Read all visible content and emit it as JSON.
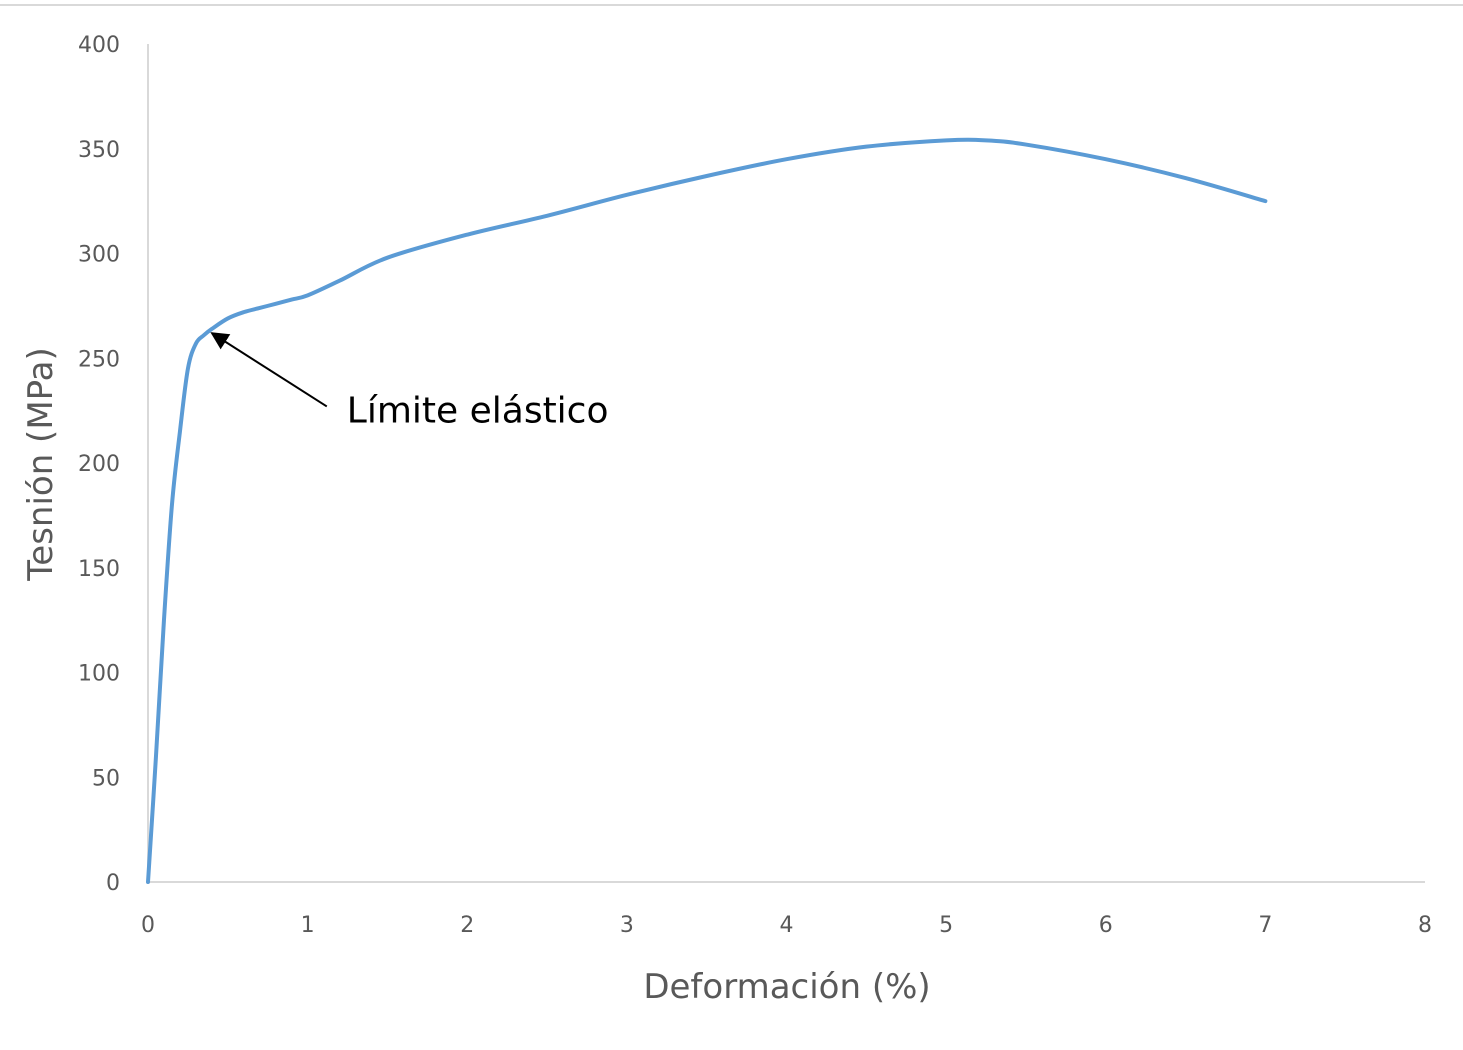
{
  "chart_data": {
    "type": "line",
    "xlabel": "Deformación (%)",
    "ylabel": "Tesnión (MPa)",
    "xlim": [
      0,
      8
    ],
    "ylim": [
      0,
      400
    ],
    "xticks": [
      0,
      1,
      2,
      3,
      4,
      5,
      6,
      7,
      8
    ],
    "yticks": [
      0,
      50,
      100,
      150,
      200,
      250,
      300,
      350,
      400
    ],
    "grid": false,
    "legend": "none",
    "series": [
      {
        "color": "#5b9bd5",
        "x": [
          0,
          0.05,
          0.1,
          0.15,
          0.2,
          0.25,
          0.3,
          0.35,
          0.4,
          0.5,
          0.6,
          0.7,
          0.8,
          0.9,
          1.0,
          1.2,
          1.5,
          2.0,
          2.5,
          3.0,
          3.5,
          4.0,
          4.5,
          5.0,
          5.25,
          5.5,
          6.0,
          6.5,
          7.0
        ],
        "y": [
          0,
          60,
          125,
          180,
          215,
          245,
          257,
          261,
          264,
          269,
          272,
          274,
          276,
          278,
          280,
          287,
          298,
          309,
          318,
          328,
          337,
          345,
          351,
          354,
          354,
          352,
          345,
          336,
          325
        ]
      }
    ],
    "annotations": [
      {
        "text": "Límite elástico",
        "arrow_to": {
          "x": 0.4,
          "y": 262
        },
        "arrow_from": {
          "x": 1.12,
          "y": 227
        }
      }
    ]
  }
}
